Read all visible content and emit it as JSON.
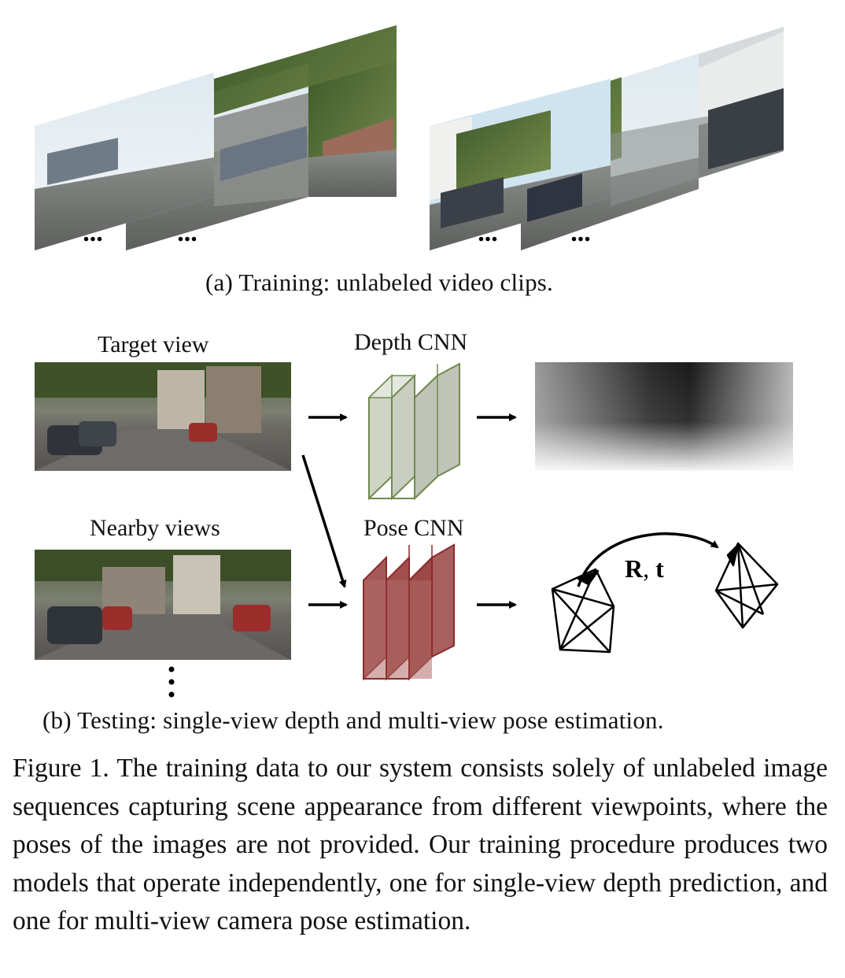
{
  "panel_a": {
    "caption": "(a) Training: unlabeled video clips.",
    "clip_frames": [
      {
        "ellipsis": "..."
      },
      {
        "ellipsis": "..."
      },
      {
        "ellipsis": "..."
      },
      {
        "ellipsis": "..."
      }
    ]
  },
  "panel_b": {
    "caption": "(b) Testing: single-view depth and multi-view pose estimation.",
    "target_view_label": "Target view",
    "nearby_views_label": "Nearby views",
    "depth_cnn_label": "Depth CNN",
    "pose_cnn_label": "Pose CNN",
    "pose_output_R": "R",
    "pose_output_sep": ", ",
    "pose_output_t": "t",
    "depth_cnn_color": "#6f8a4e",
    "pose_cnn_color": "#8b2a2a"
  },
  "figure_caption": "Figure 1. The training data to our system consists solely of unlabeled image sequences capturing scene appearance from different viewpoints, where the poses of the images are not provided. Our training procedure produces two models that operate independently, one for single-view depth prediction, and one for multi-view camera pose estimation."
}
